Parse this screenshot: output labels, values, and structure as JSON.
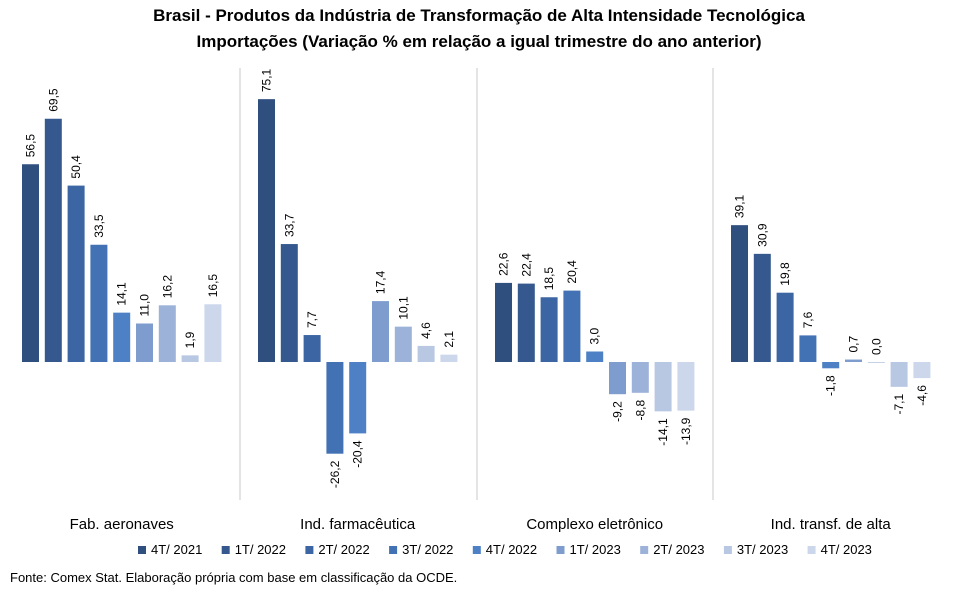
{
  "title_line1": "Brasil - Produtos da Indústria de Transformação de Alta Intensidade Tecnológica",
  "title_line2": "Importações (Variação % em relação a igual trimestre do ano anterior)",
  "source": "Fonte: Comex Stat. Elaboração própria com base em classificação da OCDE.",
  "chart_data": {
    "type": "bar",
    "categories": [
      "Fab. aeronaves",
      "Ind. farmacêutica",
      "Complexo eletrônico",
      "Ind. transf. de alta"
    ],
    "series": [
      {
        "name": "4T/ 2021",
        "color": "#2f4f7f",
        "values": [
          56.5,
          75.1,
          22.6,
          39.1
        ]
      },
      {
        "name": "1T/ 2022",
        "color": "#35598f",
        "values": [
          69.5,
          33.7,
          22.4,
          30.9
        ]
      },
      {
        "name": "2T/ 2022",
        "color": "#3c65a3",
        "values": [
          50.4,
          7.7,
          18.5,
          19.8
        ]
      },
      {
        "name": "3T/ 2022",
        "color": "#4272b3",
        "values": [
          33.5,
          -26.2,
          20.4,
          7.6
        ]
      },
      {
        "name": "4T/ 2022",
        "color": "#4d80c4",
        "values": [
          14.1,
          -20.4,
          3.0,
          -1.8
        ]
      },
      {
        "name": "1T/ 2023",
        "color": "#7e9ccd",
        "values": [
          11.0,
          17.4,
          -9.2,
          0.7
        ]
      },
      {
        "name": "2T/ 2023",
        "color": "#9cb2d8",
        "values": [
          16.2,
          10.1,
          -8.8,
          0.0
        ]
      },
      {
        "name": "3T/ 2023",
        "color": "#b8c8e3",
        "values": [
          1.9,
          4.6,
          -14.1,
          -7.1
        ]
      },
      {
        "name": "4T/ 2023",
        "color": "#cdd7eb",
        "values": [
          16.5,
          2.1,
          -13.9,
          -4.6
        ]
      }
    ],
    "data_labels": [
      [
        "56,5",
        "69,5",
        "50,4",
        "33,5",
        "14,1",
        "11,0",
        "16,2",
        "1,9",
        "16,5"
      ],
      [
        "75,1",
        "33,7",
        "7,7",
        "-26,2",
        "-20,4",
        "17,4",
        "10,1",
        "4,6",
        "2,1"
      ],
      [
        "22,6",
        "22,4",
        "18,5",
        "20,4",
        "3,0",
        "-9,2",
        "-8,8",
        "-14,1",
        "-13,9"
      ],
      [
        "39,1",
        "30,9",
        "19,8",
        "7,6",
        "-1,8",
        "0,7",
        "0,0",
        "-7,1",
        "-4,6"
      ]
    ],
    "ylim": [
      -30,
      80
    ],
    "legend": "bottom",
    "grid": false,
    "separators": true
  }
}
